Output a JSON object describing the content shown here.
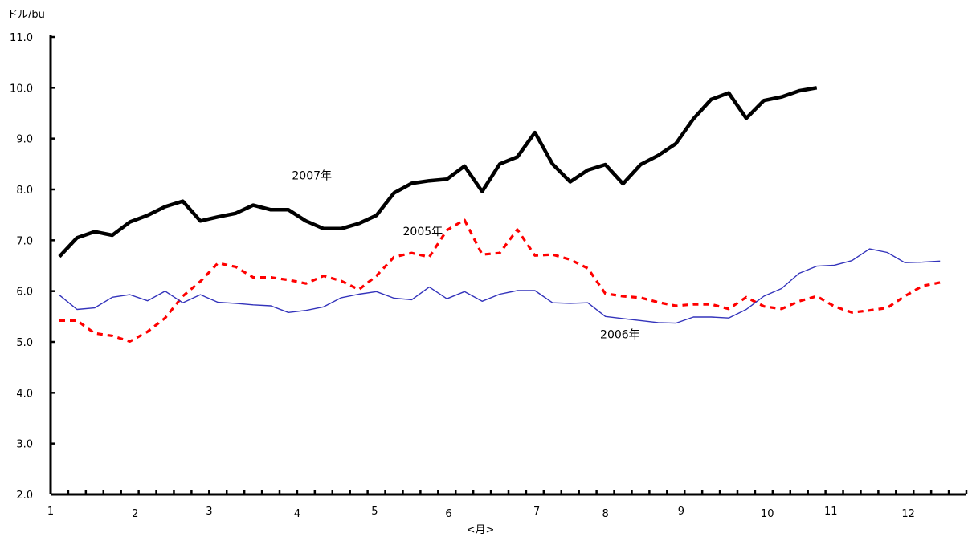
{
  "chart_data": {
    "type": "line",
    "ylabel": "ドル/bu",
    "xlabel": "<月>",
    "ylim": [
      2.0,
      11.0
    ],
    "yticks": [
      "2.0",
      "3.0",
      "4.0",
      "5.0",
      "6.0",
      "7.0",
      "8.0",
      "9.0",
      "10.0",
      "11.0"
    ],
    "x_points_per_year": 52,
    "x_month_labels": [
      {
        "label": "1",
        "week": 1
      },
      {
        "label": "2",
        "week": 5.3
      },
      {
        "label": "3",
        "week": 9.5
      },
      {
        "label": "4",
        "week": 14.5
      },
      {
        "label": "5",
        "week": 18.9
      },
      {
        "label": "6",
        "week": 23.1
      },
      {
        "label": "7",
        "week": 28.1
      },
      {
        "label": "8",
        "week": 32.0
      },
      {
        "label": "9",
        "week": 36.3
      },
      {
        "label": "10",
        "week": 41.2
      },
      {
        "label": "11",
        "week": 44.8
      },
      {
        "label": "12",
        "week": 49.2
      }
    ],
    "grid": false,
    "series": [
      {
        "name": "2007年",
        "color": "#000000",
        "style": "solid-thick",
        "label_at": {
          "week": 14.2,
          "value": 8.2
        },
        "points": [
          [
            1,
            6.68
          ],
          [
            2,
            7.05
          ],
          [
            3,
            7.17
          ],
          [
            4,
            7.1
          ],
          [
            5,
            7.36
          ],
          [
            6,
            7.49
          ],
          [
            7,
            7.66
          ],
          [
            8,
            7.77
          ],
          [
            9,
            7.38
          ],
          [
            10,
            7.46
          ],
          [
            11,
            7.53
          ],
          [
            12,
            7.69
          ],
          [
            13,
            7.6
          ],
          [
            14,
            7.6
          ],
          [
            15,
            7.38
          ],
          [
            16,
            7.23
          ],
          [
            17,
            7.23
          ],
          [
            18,
            7.33
          ],
          [
            19,
            7.49
          ],
          [
            20,
            7.93
          ],
          [
            21,
            8.12
          ],
          [
            22,
            8.17
          ],
          [
            23,
            8.2
          ],
          [
            24,
            8.46
          ],
          [
            25,
            7.96
          ],
          [
            26,
            8.5
          ],
          [
            27,
            8.64
          ],
          [
            28,
            9.12
          ],
          [
            29,
            8.5
          ],
          [
            30,
            8.15
          ],
          [
            31,
            8.38
          ],
          [
            32,
            8.49
          ],
          [
            33,
            8.11
          ],
          [
            34,
            8.49
          ],
          [
            35,
            8.67
          ],
          [
            36,
            8.9
          ],
          [
            37,
            9.39
          ],
          [
            38,
            9.77
          ],
          [
            39,
            9.9
          ],
          [
            40,
            9.4
          ],
          [
            41,
            9.75
          ],
          [
            42,
            9.82
          ],
          [
            43,
            9.94
          ],
          [
            44,
            10.0
          ]
        ]
      },
      {
        "name": "2005年",
        "color": "#ff0000",
        "style": "dashed",
        "label_at": {
          "week": 20.5,
          "value": 7.1
        },
        "points": [
          [
            1,
            5.42
          ],
          [
            2,
            5.42
          ],
          [
            3,
            5.17
          ],
          [
            4,
            5.12
          ],
          [
            5,
            5.01
          ],
          [
            6,
            5.2
          ],
          [
            7,
            5.47
          ],
          [
            8,
            5.9
          ],
          [
            9,
            6.19
          ],
          [
            10,
            6.55
          ],
          [
            11,
            6.48
          ],
          [
            12,
            6.27
          ],
          [
            13,
            6.27
          ],
          [
            14,
            6.22
          ],
          [
            15,
            6.15
          ],
          [
            16,
            6.3
          ],
          [
            17,
            6.2
          ],
          [
            18,
            6.03
          ],
          [
            19,
            6.3
          ],
          [
            20,
            6.67
          ],
          [
            21,
            6.75
          ],
          [
            22,
            6.67
          ],
          [
            23,
            7.2
          ],
          [
            24,
            7.4
          ],
          [
            25,
            6.72
          ],
          [
            26,
            6.75
          ],
          [
            27,
            7.21
          ],
          [
            28,
            6.7
          ],
          [
            29,
            6.72
          ],
          [
            30,
            6.62
          ],
          [
            31,
            6.45
          ],
          [
            32,
            5.95
          ],
          [
            33,
            5.9
          ],
          [
            34,
            5.87
          ],
          [
            35,
            5.78
          ],
          [
            36,
            5.71
          ],
          [
            37,
            5.74
          ],
          [
            38,
            5.74
          ],
          [
            39,
            5.65
          ],
          [
            40,
            5.88
          ],
          [
            41,
            5.7
          ],
          [
            42,
            5.65
          ],
          [
            43,
            5.8
          ],
          [
            44,
            5.9
          ],
          [
            45,
            5.7
          ],
          [
            46,
            5.58
          ],
          [
            47,
            5.62
          ],
          [
            48,
            5.67
          ],
          [
            49,
            5.9
          ],
          [
            50,
            6.1
          ],
          [
            51,
            6.17
          ]
        ]
      },
      {
        "name": "2006年",
        "color": "#3333bb",
        "style": "solid-thin",
        "label_at": {
          "week": 31.7,
          "value": 5.07
        },
        "points": [
          [
            1,
            5.92
          ],
          [
            2,
            5.64
          ],
          [
            3,
            5.67
          ],
          [
            4,
            5.88
          ],
          [
            5,
            5.93
          ],
          [
            6,
            5.81
          ],
          [
            7,
            6.0
          ],
          [
            8,
            5.77
          ],
          [
            9,
            5.93
          ],
          [
            10,
            5.78
          ],
          [
            11,
            5.76
          ],
          [
            12,
            5.73
          ],
          [
            13,
            5.71
          ],
          [
            14,
            5.58
          ],
          [
            15,
            5.62
          ],
          [
            16,
            5.69
          ],
          [
            17,
            5.87
          ],
          [
            18,
            5.94
          ],
          [
            19,
            5.99
          ],
          [
            20,
            5.86
          ],
          [
            21,
            5.83
          ],
          [
            22,
            6.08
          ],
          [
            23,
            5.85
          ],
          [
            24,
            5.99
          ],
          [
            25,
            5.8
          ],
          [
            26,
            5.94
          ],
          [
            27,
            6.01
          ],
          [
            28,
            6.01
          ],
          [
            29,
            5.77
          ],
          [
            30,
            5.76
          ],
          [
            31,
            5.77
          ],
          [
            32,
            5.5
          ],
          [
            33,
            5.46
          ],
          [
            34,
            5.42
          ],
          [
            35,
            5.38
          ],
          [
            36,
            5.37
          ],
          [
            37,
            5.49
          ],
          [
            38,
            5.49
          ],
          [
            39,
            5.47
          ],
          [
            40,
            5.64
          ],
          [
            41,
            5.9
          ],
          [
            42,
            6.05
          ],
          [
            43,
            6.35
          ],
          [
            44,
            6.49
          ],
          [
            45,
            6.51
          ],
          [
            46,
            6.6
          ],
          [
            47,
            6.83
          ],
          [
            48,
            6.76
          ],
          [
            49,
            6.56
          ],
          [
            50,
            6.57
          ],
          [
            51,
            6.59
          ]
        ]
      }
    ]
  }
}
